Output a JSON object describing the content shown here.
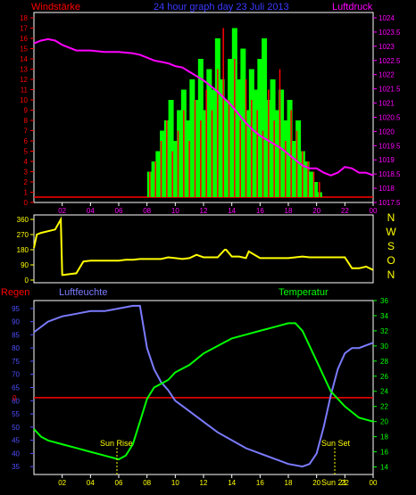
{
  "header": {
    "left_label": "Windstärke",
    "title": "24 hour graph day  23 Juli 2013",
    "right_label": "Luftdruck"
  },
  "compass": [
    "N",
    "W",
    "S",
    "O",
    "N"
  ],
  "bottom_labels": {
    "rain": "Regen",
    "humidity": "Luftfeuchte",
    "temperature": "Temperatur",
    "sunrise": "Sun Rise",
    "sunset": "Sun Set",
    "sunset_time": "Sun 21"
  },
  "colors": {
    "wind": "#ff0000",
    "gust": "#00ff00",
    "pressure": "#ff00ff",
    "direction": "#ffff00",
    "humidity": "#7b7bff",
    "temperature": "#00ff00",
    "rain": "#ff0000",
    "axis_left": "#ff0000",
    "axis_right": "#ff00ff",
    "axis_blue": "#5050ff"
  },
  "chart_data": [
    {
      "type": "bar",
      "title": "24 hour graph day  23 Juli 2013",
      "ylabel": "Windstärke",
      "y2label": "Luftdruck",
      "xticks": [
        "02",
        "04",
        "06",
        "08",
        "10",
        "12",
        "14",
        "16",
        "18",
        "20",
        "22",
        "00"
      ],
      "yticks": [
        0,
        1,
        2,
        3,
        4,
        5,
        6,
        7,
        8,
        9,
        10,
        11,
        12,
        13,
        14,
        15,
        16,
        17,
        18
      ],
      "y2ticks": [
        "1017.5",
        "1018",
        "1018.5",
        "1019",
        "1019.5",
        "1020",
        "1020.5",
        "1021",
        "1021.5",
        "1022",
        "1022.5",
        "1023",
        "1023.5",
        "1024"
      ],
      "ylim": [
        0,
        18
      ],
      "y2lim": [
        1017.5,
        1024
      ],
      "series": [
        {
          "name": "Luftdruck",
          "x": [
            0,
            0.5,
            1,
            1.5,
            2,
            3,
            4,
            5,
            6,
            7,
            7.5,
            8,
            8.5,
            9,
            9.5,
            10,
            10.5,
            11,
            11.5,
            12,
            12.5,
            13,
            13.5,
            14,
            14.5,
            15,
            15.5,
            16,
            16.5,
            17,
            17.5,
            18,
            18.5,
            19,
            19.5,
            20,
            20.5,
            21,
            21.5,
            22,
            22.5,
            23,
            23.5,
            24
          ],
          "values": [
            1023.1,
            1023.2,
            1023.25,
            1023.2,
            1023.05,
            1022.85,
            1022.85,
            1022.8,
            1022.8,
            1022.75,
            1022.7,
            1022.6,
            1022.5,
            1022.45,
            1022.4,
            1022.3,
            1022.25,
            1022.1,
            1021.95,
            1021.8,
            1021.6,
            1021.4,
            1021.15,
            1020.9,
            1020.6,
            1020.3,
            1020.05,
            1019.85,
            1019.7,
            1019.55,
            1019.4,
            1019.2,
            1019.0,
            1018.8,
            1018.7,
            1018.7,
            1018.55,
            1018.45,
            1018.55,
            1018.75,
            1018.7,
            1018.55,
            1018.55,
            1018.45
          ]
        },
        {
          "name": "gust",
          "x": [
            8.2,
            8.5,
            8.8,
            9.1,
            9.4,
            9.7,
            10,
            10.3,
            10.6,
            10.9,
            11.2,
            11.5,
            11.8,
            12.1,
            12.4,
            12.7,
            13,
            13.3,
            13.6,
            13.9,
            14.2,
            14.5,
            14.8,
            15.1,
            15.4,
            15.7,
            16,
            16.3,
            16.6,
            16.9,
            17.2,
            17.5,
            17.8,
            18.1,
            18.4,
            18.7,
            19,
            19.3,
            19.6,
            19.9,
            20.2
          ],
          "values": [
            3,
            4,
            5,
            7,
            8,
            10,
            6,
            9,
            11,
            8,
            12,
            10,
            14,
            9,
            13,
            11,
            16,
            12,
            10,
            14,
            17,
            12,
            15,
            9,
            13,
            11,
            14,
            16,
            10,
            12,
            9,
            11,
            8,
            10,
            6,
            8,
            5,
            4,
            3,
            2,
            1
          ]
        },
        {
          "name": "wind",
          "x": [
            8.2,
            8.6,
            9,
            9.4,
            9.8,
            10.2,
            10.6,
            11,
            11.4,
            11.8,
            12.2,
            12.6,
            13,
            13.4,
            13.8,
            14.2,
            14.6,
            15,
            15.4,
            15.8,
            16.2,
            16.6,
            17,
            17.4,
            17.8,
            18.2,
            18.6,
            19,
            19.4,
            19.8,
            20.2
          ],
          "values": [
            3,
            4,
            6,
            8,
            5,
            7,
            9,
            6,
            10,
            8,
            11,
            9,
            13,
            17,
            10,
            14,
            8,
            12,
            10,
            9,
            7,
            11,
            8,
            13,
            6,
            9,
            7,
            5,
            4,
            3,
            2
          ]
        }
      ]
    },
    {
      "type": "line",
      "title": "",
      "ylabel": "",
      "yticks": [
        0,
        90,
        180,
        270,
        360
      ],
      "ylim": [
        0,
        360
      ],
      "series": [
        {
          "name": "direction",
          "x": [
            0,
            0.2,
            0.5,
            1.5,
            1.9,
            2.0,
            2.1,
            2.5,
            3,
            3.5,
            4,
            5,
            6,
            6.5,
            7,
            7.5,
            8,
            9,
            9.5,
            10,
            10.5,
            11,
            11.5,
            12,
            13,
            13.5,
            13.6,
            14,
            14.5,
            15,
            15.2,
            16,
            17,
            18,
            18.5,
            19,
            19.5,
            20,
            21,
            22,
            22.5,
            23,
            23.5,
            24
          ],
          "values": [
            190,
            270,
            280,
            300,
            360,
            30,
            30,
            35,
            40,
            110,
            115,
            115,
            115,
            120,
            120,
            125,
            125,
            125,
            135,
            130,
            125,
            130,
            150,
            135,
            135,
            180,
            180,
            140,
            140,
            130,
            170,
            130,
            130,
            130,
            135,
            140,
            135,
            135,
            135,
            135,
            70,
            70,
            80,
            60
          ]
        }
      ]
    },
    {
      "type": "line",
      "title": "",
      "xticks": [
        "02",
        "04",
        "06",
        "08",
        "10",
        "12",
        "14",
        "16",
        "18",
        "20",
        "22",
        "00"
      ],
      "yticks": [
        35,
        40,
        45,
        50,
        55,
        60,
        65,
        70,
        75,
        80,
        85,
        90,
        95
      ],
      "y2ticks": [
        14,
        16,
        18,
        20,
        22,
        24,
        26,
        28,
        30,
        32,
        34,
        36
      ],
      "ylim": [
        32,
        98
      ],
      "y2lim": [
        13,
        36
      ],
      "rain_level": 0,
      "series": [
        {
          "name": "Luftfeuchte",
          "x": [
            0,
            1,
            2,
            3,
            4,
            5,
            6,
            7,
            7.5,
            8,
            8.5,
            9,
            9.5,
            10,
            11,
            12,
            13,
            14,
            15,
            16,
            17,
            18,
            19,
            19.5,
            20,
            20.5,
            21,
            21.5,
            22,
            22.5,
            23,
            23.5,
            24
          ],
          "values": [
            86,
            90,
            92,
            93,
            94,
            94,
            95,
            96,
            96,
            80,
            72,
            67,
            64,
            60,
            56,
            52,
            48,
            45,
            42,
            40,
            38,
            36,
            35,
            36,
            40,
            50,
            62,
            72,
            78,
            80,
            80,
            81,
            82
          ]
        },
        {
          "name": "Temperatur",
          "x": [
            0,
            0.5,
            1,
            2,
            3,
            4,
            5,
            6,
            6.5,
            7,
            7.5,
            8,
            8.5,
            9,
            9.5,
            10,
            11,
            12,
            13,
            14,
            15,
            16,
            17,
            18,
            18.5,
            19,
            19.5,
            20,
            20.5,
            21,
            22,
            23,
            24
          ],
          "values": [
            19,
            18,
            17.5,
            17,
            16.5,
            16,
            15.5,
            15,
            15.5,
            17,
            20,
            23,
            24.5,
            25,
            25.5,
            26.5,
            27.5,
            29,
            30,
            31,
            31.5,
            32,
            32.5,
            33,
            33,
            32,
            30,
            28,
            26,
            24,
            22,
            20.5,
            20
          ]
        }
      ]
    }
  ]
}
